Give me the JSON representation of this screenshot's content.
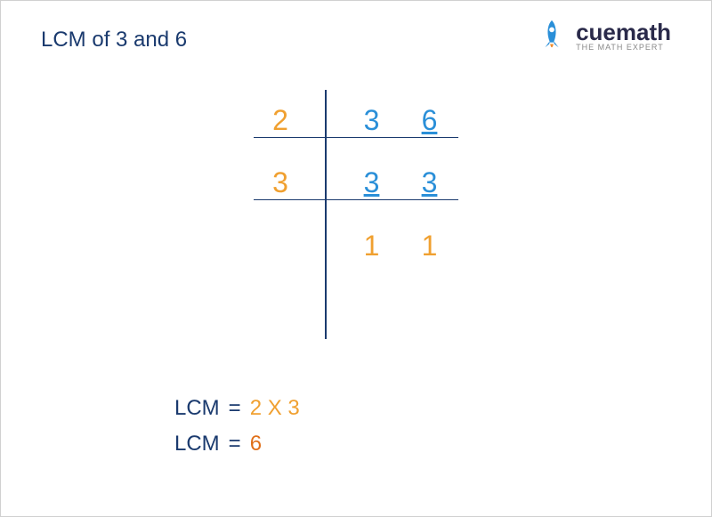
{
  "title": "LCM of 3 and 6",
  "logo": {
    "brand": "cuemath",
    "tagline": "THE MATH EXPERT",
    "rocket_body_color": "#2a8fd8",
    "rocket_flame_color": "#f08c2e"
  },
  "colors": {
    "title": "#1a3a6e",
    "line": "#1a3a6e",
    "orange": "#f0a030",
    "blue": "#2a8fd8",
    "dark_orange": "#e0701a",
    "lcm_label": "#1a3a6e"
  },
  "table": {
    "rows": [
      {
        "divisor": "2",
        "divisor_color": "#f0a030",
        "cells": [
          {
            "v": "3",
            "color": "#2a8fd8",
            "u": false
          },
          {
            "v": "6",
            "color": "#2a8fd8",
            "u": true
          }
        ]
      },
      {
        "divisor": "3",
        "divisor_color": "#f0a030",
        "cells": [
          {
            "v": "3",
            "color": "#2a8fd8",
            "u": true
          },
          {
            "v": "3",
            "color": "#2a8fd8",
            "u": true
          }
        ]
      },
      {
        "divisor": "",
        "divisor_color": "#f0a030",
        "cells": [
          {
            "v": "1",
            "color": "#f0a030",
            "u": false
          },
          {
            "v": "1",
            "color": "#f0a030",
            "u": false
          }
        ]
      }
    ]
  },
  "result": {
    "label": "LCM",
    "eq": "=",
    "expr_parts": [
      {
        "t": "2",
        "c": "#f0a030"
      },
      {
        "t": " X ",
        "c": "#f0a030"
      },
      {
        "t": "3",
        "c": "#f0a030"
      }
    ],
    "final": {
      "t": "6",
      "c": "#e0701a"
    }
  }
}
